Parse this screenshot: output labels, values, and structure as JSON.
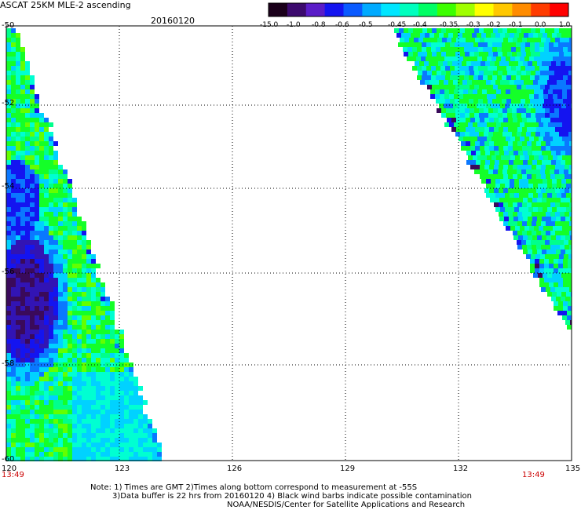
{
  "header": {
    "title": "ASCAT 25KM MLE-2 ascending",
    "date": "20160120"
  },
  "colorbar": {
    "labels": [
      "-15.0",
      "-1.0",
      "-0.8",
      "-0.6",
      "-0.5",
      "-0.45",
      "-0.4",
      "-0.35",
      "-0.3",
      "-0.2",
      "-0.1",
      "0.0",
      "1.0"
    ],
    "colors": [
      "#1a001a",
      "#3c0a6e",
      "#5a1cc8",
      "#1414f0",
      "#0a5aff",
      "#00aaff",
      "#00e6ff",
      "#00ffbe",
      "#00ff64",
      "#3cff00",
      "#a0ff00",
      "#ffff00",
      "#ffc800",
      "#ff8c00",
      "#ff3c00",
      "#ff0000"
    ]
  },
  "axes": {
    "x_ticks": [
      "120",
      "123",
      "126",
      "129",
      "132",
      "135"
    ],
    "y_ticks": [
      "-50",
      "-52",
      "-54",
      "-56",
      "-58",
      "-60"
    ],
    "time_left": "13:49",
    "time_right": "13:49"
  },
  "notes": {
    "line1": "Note: 1) Times are GMT 2)Times along bottom correspond to measurement at -55S",
    "line2": "3)Data buffer is 22 hrs from 20160120 4) Black wind barbs indicate possible contamination",
    "line3": "NOAA/NESDIS/Center for Satellite Applications and Research"
  },
  "map_data": {
    "lon_range": [
      120,
      135
    ],
    "lat_range": [
      -60,
      -50
    ],
    "swaths": [
      "left-swath",
      "right-swath"
    ]
  }
}
